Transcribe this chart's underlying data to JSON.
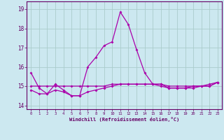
{
  "xlabel": "Windchill (Refroidissement éolien,°C)",
  "background_color": "#cce8f0",
  "grid_color": "#aacccc",
  "line_color": "#aa00aa",
  "hours": [
    0,
    1,
    2,
    3,
    4,
    5,
    6,
    7,
    8,
    9,
    10,
    11,
    12,
    13,
    14,
    15,
    16,
    17,
    18,
    19,
    20,
    21,
    22,
    23
  ],
  "series1": [
    15.7,
    14.9,
    14.6,
    15.1,
    14.8,
    14.5,
    14.5,
    16.0,
    16.5,
    17.1,
    17.3,
    18.85,
    18.2,
    16.9,
    15.7,
    15.1,
    15.1,
    14.9,
    14.9,
    14.9,
    15.0,
    15.0,
    15.1,
    15.2
  ],
  "series2": [
    14.8,
    14.6,
    14.6,
    14.8,
    14.7,
    14.5,
    14.5,
    14.7,
    14.8,
    14.9,
    15.0,
    15.1,
    15.1,
    15.1,
    15.1,
    15.1,
    15.0,
    14.9,
    14.9,
    14.9,
    14.9,
    15.0,
    15.0,
    15.2
  ],
  "series3": [
    15.0,
    15.0,
    15.0,
    15.0,
    15.0,
    15.0,
    15.0,
    15.0,
    15.0,
    15.0,
    15.1,
    15.1,
    15.1,
    15.1,
    15.1,
    15.1,
    15.1,
    15.0,
    15.0,
    15.0,
    15.0,
    15.0,
    15.0,
    15.2
  ],
  "ylim": [
    13.8,
    19.4
  ],
  "yticks": [
    14,
    15,
    16,
    17,
    18,
    19
  ]
}
